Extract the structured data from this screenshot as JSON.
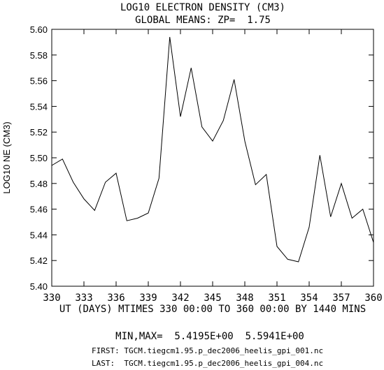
{
  "chart_data": {
    "type": "line",
    "title": "LOG10 ELECTRON DENSITY (CM3)",
    "subtitle": "GLOBAL MEANS: ZP=  1.75",
    "xlabel": "UT (DAYS) MTIMES 330 00:00 TO 360 00:00 BY 1440 MINS",
    "ylabel": "LOG10 NE (CM3)",
    "xlim": [
      330,
      360
    ],
    "ylim": [
      5.4,
      5.6
    ],
    "x_ticks": [
      330,
      333,
      336,
      339,
      342,
      345,
      348,
      351,
      354,
      357,
      360
    ],
    "x_tick_labels": [
      "330",
      "333",
      "336",
      "339",
      "342",
      "345",
      "348",
      "351",
      "354",
      "357",
      "360"
    ],
    "y_ticks": [
      5.4,
      5.42,
      5.44,
      5.46,
      5.48,
      5.5,
      5.52,
      5.54,
      5.56,
      5.58,
      5.6
    ],
    "y_tick_labels": [
      "5.40",
      "5.42",
      "5.44",
      "5.46",
      "5.48",
      "5.50",
      "5.52",
      "5.54",
      "5.56",
      "5.58",
      "5.60"
    ],
    "grid": false,
    "series": [
      {
        "x": [
          330,
          331,
          332,
          333,
          334,
          335,
          336,
          337,
          338,
          339,
          340,
          341,
          342,
          343,
          344,
          345,
          346,
          347,
          348,
          349,
          350,
          351,
          352,
          353,
          354,
          355,
          356,
          357,
          358,
          359,
          360
        ],
        "y": [
          5.494,
          5.499,
          5.481,
          5.468,
          5.459,
          5.481,
          5.488,
          5.451,
          5.453,
          5.457,
          5.484,
          5.594,
          5.532,
          5.57,
          5.524,
          5.513,
          5.529,
          5.561,
          5.513,
          5.479,
          5.487,
          5.431,
          5.421,
          5.419,
          5.446,
          5.502,
          5.454,
          5.48,
          5.453,
          5.46,
          5.434
        ]
      }
    ],
    "minmax_text": "MIN,MAX=  5.4195E+00  5.5941E+00",
    "first_text": "FIRST: TGCM.tiegcm1.95.p_dec2006_heelis_gpi_001.nc",
    "last_text": "LAST:  TGCM.tiegcm1.95.p_dec2006_heelis_gpi_004.nc"
  }
}
